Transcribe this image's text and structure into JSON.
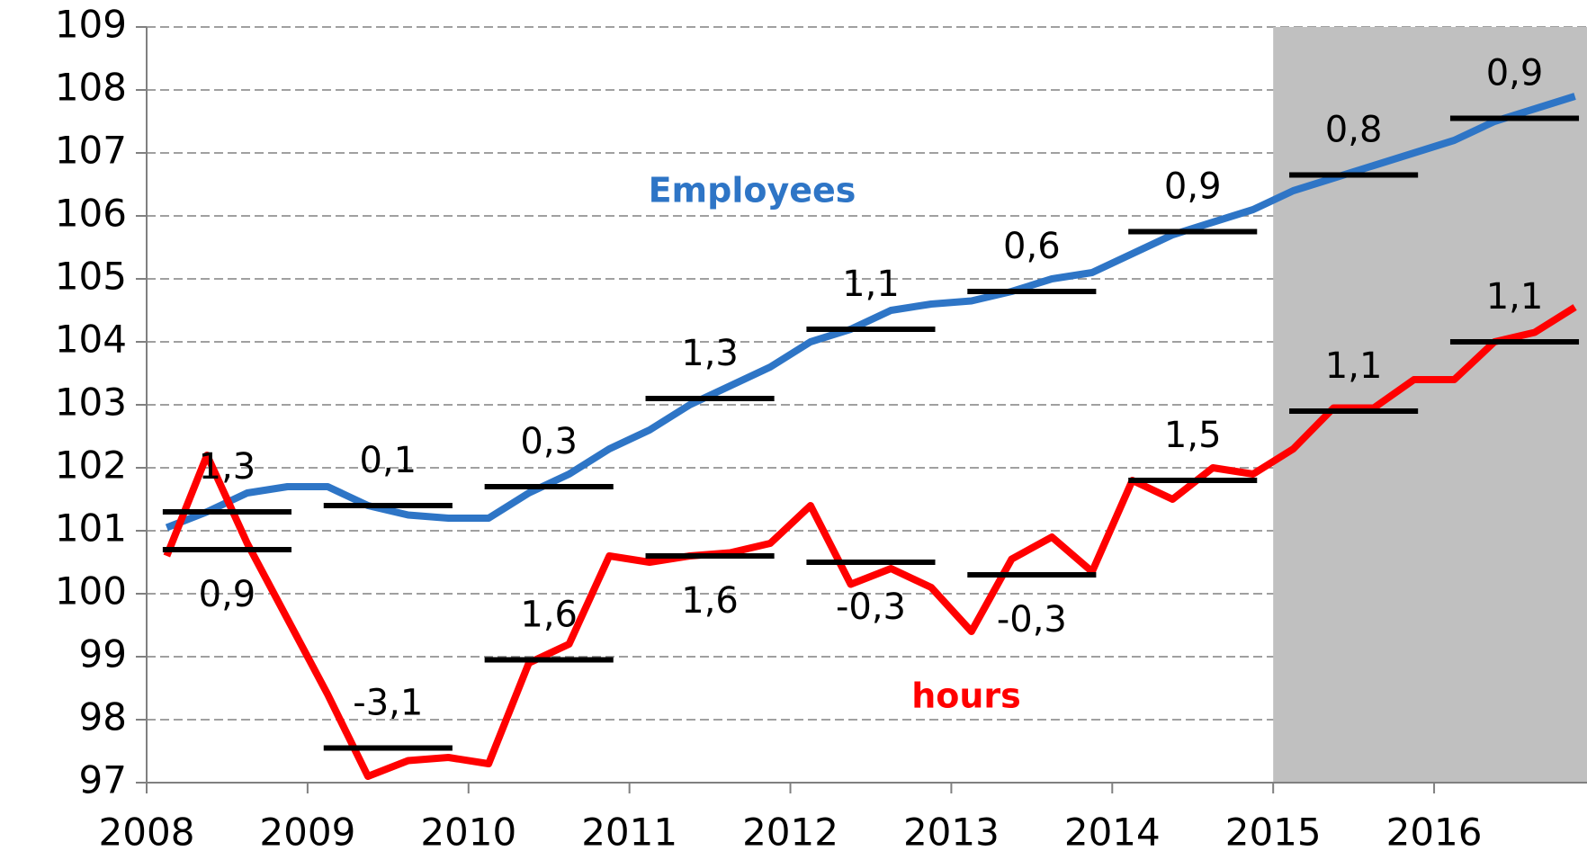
{
  "chart_data": {
    "type": "line",
    "x": [
      2008.125,
      2008.375,
      2008.625,
      2008.875,
      2009.125,
      2009.375,
      2009.625,
      2009.875,
      2010.125,
      2010.375,
      2010.625,
      2010.875,
      2011.125,
      2011.375,
      2011.625,
      2011.875,
      2012.125,
      2012.375,
      2012.625,
      2012.875,
      2013.125,
      2013.375,
      2013.625,
      2013.875,
      2014.125,
      2014.375,
      2014.625,
      2014.875,
      2015.125,
      2015.375,
      2015.625,
      2015.875,
      2016.125,
      2016.375,
      2016.625,
      2016.875
    ],
    "series": [
      {
        "name": "Employees",
        "color": "#2e75c6",
        "values": [
          101.05,
          101.3,
          101.6,
          101.7,
          101.7,
          101.4,
          101.25,
          101.2,
          101.2,
          101.6,
          101.9,
          102.3,
          102.6,
          103.0,
          103.3,
          103.6,
          104.0,
          104.2,
          104.5,
          104.6,
          104.65,
          104.8,
          105.0,
          105.1,
          105.4,
          105.7,
          105.9,
          106.1,
          106.4,
          106.6,
          106.8,
          107.0,
          107.2,
          107.5,
          107.7,
          107.9
        ],
        "annual_means": [
          101.3,
          101.4,
          101.7,
          103.1,
          104.2,
          104.8,
          105.75,
          106.65,
          107.55
        ],
        "growth": {
          "values": [
            1.3,
            0.1,
            0.3,
            1.3,
            1.1,
            0.6,
            0.9,
            0.8,
            0.9
          ],
          "value_labels": [
            "1,3",
            "0,1",
            "0,3",
            "1,3",
            "1,1",
            "0,6",
            "0,9",
            "0,8",
            "0,9"
          ]
        }
      },
      {
        "name": "hours",
        "color": "#ff0000",
        "values": [
          100.6,
          102.2,
          100.8,
          99.6,
          98.4,
          97.1,
          97.35,
          97.4,
          97.3,
          98.9,
          99.2,
          100.6,
          100.5,
          100.6,
          100.65,
          100.8,
          101.4,
          100.15,
          100.4,
          100.1,
          99.4,
          100.55,
          100.9,
          100.35,
          101.8,
          101.5,
          102.0,
          101.9,
          102.3,
          102.95,
          102.95,
          103.4,
          103.4,
          104.0,
          104.15,
          104.55
        ],
        "annual_means": [
          100.7,
          97.55,
          98.95,
          100.6,
          100.5,
          100.3,
          101.8,
          102.9,
          104.0
        ],
        "growth": {
          "values": [
            0.9,
            -3.1,
            1.6,
            1.6,
            -0.3,
            -0.3,
            1.5,
            1.1,
            1.1
          ],
          "value_labels": [
            "0,9",
            "-3,1",
            "1,6",
            "1,6",
            "-0,3",
            "-0,3",
            "1,5",
            "1,1",
            "1,1"
          ]
        }
      }
    ],
    "years": [
      2008,
      2009,
      2010,
      2011,
      2012,
      2013,
      2014,
      2015,
      2016
    ],
    "xlim": [
      2008,
      2016.95
    ],
    "xticks": [
      2008,
      2009,
      2010,
      2011,
      2012,
      2013,
      2014,
      2015,
      2016
    ],
    "ylim": [
      97,
      109
    ],
    "yticks": [
      97,
      98,
      99,
      100,
      101,
      102,
      103,
      104,
      105,
      106,
      107,
      108,
      109
    ],
    "grid": true,
    "forecast_shading": {
      "from": 2015,
      "color": "#c0c0c0"
    }
  }
}
